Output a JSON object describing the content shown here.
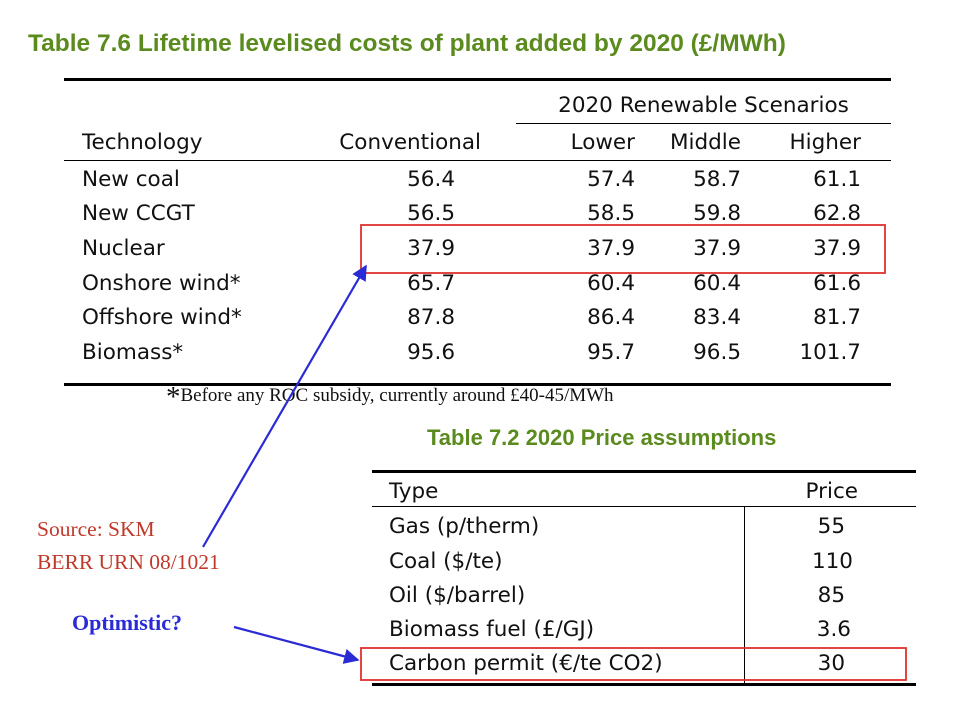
{
  "table1": {
    "title": "Table 7.6 Lifetime levelised costs of plant added by 2020 (£/MWh)",
    "group_header": "2020 Renewable Scenarios",
    "columns": [
      "Technology",
      "Conventional",
      "Lower",
      "Middle",
      "Higher"
    ],
    "rows": [
      [
        "New coal",
        "56.4",
        "57.4",
        "58.7",
        "61.1"
      ],
      [
        "New CCGT",
        "56.5",
        "58.5",
        "59.8",
        "62.8"
      ],
      [
        "Nuclear",
        "37.9",
        "37.9",
        "37.9",
        "37.9"
      ],
      [
        "Onshore wind*",
        "65.7",
        "60.4",
        "60.4",
        "61.6"
      ],
      [
        "Offshore wind*",
        "87.8",
        "86.4",
        "83.4",
        "81.7"
      ],
      [
        "Biomass*",
        "95.6",
        "95.7",
        "96.5",
        "101.7"
      ]
    ],
    "footnote_star": "*",
    "footnote": "Before any ROC subsidy, currently around £40-45/MWh"
  },
  "table2": {
    "title": "Table 7.2 2020 Price assumptions",
    "columns": [
      "Type",
      "Price"
    ],
    "rows": [
      [
        "Gas (p/therm)",
        "55"
      ],
      [
        "Coal ($/te)",
        "110"
      ],
      [
        "Oil ($/barrel)",
        "85"
      ],
      [
        "Biomass fuel (£/GJ)",
        "3.6"
      ],
      [
        "Carbon permit (€/te CO2)",
        "30"
      ]
    ]
  },
  "annotations": {
    "source_line1": "Source: SKM",
    "source_line2": "BERR URN 08/1021",
    "question": "Optimistic?"
  },
  "colors": {
    "title_green": "#5b8a1e",
    "source_red": "#c0392b",
    "highlight_box_red": "#e03030",
    "arrow_blue": "#2b2bd6"
  }
}
